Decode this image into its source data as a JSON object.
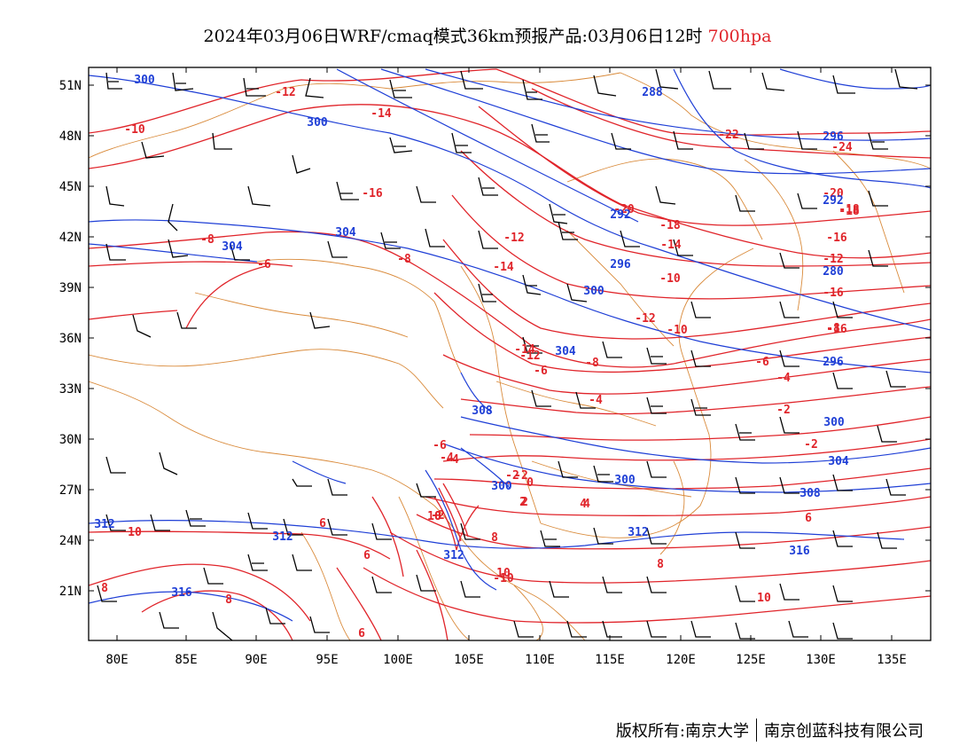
{
  "title": {
    "main": "2024年03月06日WRF/cmaq模式36km预报产品:03月06日12时",
    "level": "700hpa"
  },
  "footer": {
    "copyright": "版权所有:南京大学",
    "company": "南京创蓝科技有限公司"
  },
  "axes": {
    "lat_labels": [
      "51N",
      "48N",
      "45N",
      "42N",
      "39N",
      "36N",
      "33N",
      "30N",
      "27N",
      "24N",
      "21N"
    ],
    "lon_labels": [
      "80E",
      "85E",
      "90E",
      "95E",
      "100E",
      "105E",
      "110E",
      "115E",
      "120E",
      "125E",
      "130E",
      "135E"
    ]
  },
  "colors": {
    "temperature": "#e0242a",
    "geopotential_height": "#1f3fd6",
    "border": "#d98a3a",
    "wind_barb": "#000000"
  },
  "temperature_labels": [
    "-12",
    "-14",
    "-10",
    "-16",
    "-20",
    "-18",
    "-22",
    "-24",
    "-18",
    "-8",
    "-6",
    "-8",
    "-20",
    "-18",
    "-16",
    "-14",
    "-12",
    "-10",
    "-16",
    "-12",
    "-14",
    "-12",
    "-10",
    "-8",
    "-6",
    "-4",
    "-2",
    "-4",
    "-2",
    "-2",
    "-4",
    "-6",
    "-8",
    "-10",
    "-12",
    "-14",
    "-16",
    "-6",
    "-4",
    "-2",
    "0",
    "2",
    "4",
    "6",
    "8",
    "10",
    "-2",
    "2",
    "4",
    "6",
    "8",
    "10",
    "6",
    "8",
    "10",
    "8",
    "6",
    "8",
    "10"
  ],
  "height_labels": [
    "300",
    "300",
    "288",
    "304",
    "304",
    "292",
    "296",
    "300",
    "304",
    "308",
    "300",
    "296",
    "296",
    "300",
    "304",
    "308",
    "312",
    "312",
    "312",
    "316",
    "312",
    "316",
    "280",
    "300",
    "292"
  ]
}
